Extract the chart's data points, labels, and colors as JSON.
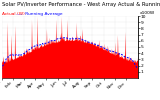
{
  "title": "Solar PV/Inverter Performance - West Array Actual & Running Average Power Output",
  "subtitle_red": "Actual (W)",
  "subtitle_blue": "----  Running Average",
  "background_color": "#ffffff",
  "grid_color": "#c8c8c8",
  "bar_color": "#ff0000",
  "line_color": "#0000ff",
  "title_color": "#000000",
  "ylim": [
    0,
    1000
  ],
  "yticks": [
    100,
    200,
    300,
    400,
    500,
    600,
    700,
    800,
    900,
    1000
  ],
  "ytick_labels": [
    "1",
    "2",
    "3",
    "4",
    "5",
    "6",
    "7",
    "8",
    "9",
    "10"
  ],
  "ylabel_right": "x100W",
  "title_fontsize": 3.8,
  "tick_fontsize": 3.2,
  "num_days": 52,
  "avg_window": 30
}
